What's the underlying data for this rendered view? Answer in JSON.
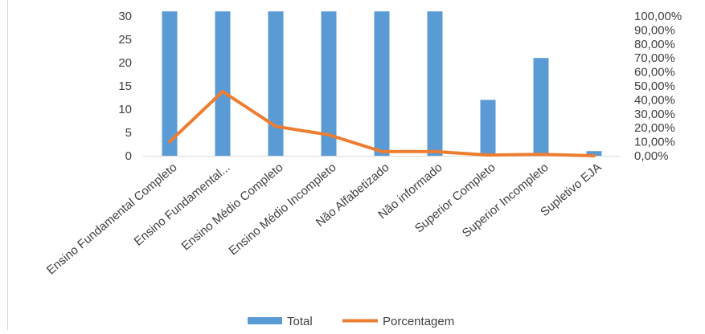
{
  "chart_data": {
    "type": "bar",
    "categories": [
      "Ensino Fundamental Completo",
      "Ensino Fundamental...",
      "Ensino Médio Completo",
      "Ensino Médio Incompleto",
      "Não Alfabetizado",
      "Não informado",
      "Superior Completo",
      "Superior Incompleto",
      "Supletivo EJA"
    ],
    "series": [
      {
        "name": "Total",
        "type": "bar",
        "axis": "left",
        "color": "#5B9BD5",
        "values": [
          31,
          31,
          31,
          31,
          31,
          31,
          12,
          21,
          1
        ]
      },
      {
        "name": "Porcentagem",
        "type": "line",
        "axis": "right",
        "color": "#ED7D31",
        "values": [
          10,
          46,
          21,
          15,
          3,
          3,
          0.5,
          1,
          0
        ]
      }
    ],
    "y_left": {
      "ylim": [
        0,
        30
      ],
      "ticks": [
        "0",
        "5",
        "10",
        "15",
        "20",
        "25",
        "30"
      ]
    },
    "y_right": {
      "ylim": [
        0,
        100
      ],
      "ticks": [
        "0,00%",
        "10,00%",
        "20,00%",
        "30,00%",
        "40,00%",
        "50,00%",
        "60,00%",
        "70,00%",
        "80,00%",
        "90,00%",
        "100,00%"
      ]
    },
    "title": "",
    "xlabel": "",
    "ylabel": "",
    "grid": false,
    "legend": "bottom-center"
  }
}
